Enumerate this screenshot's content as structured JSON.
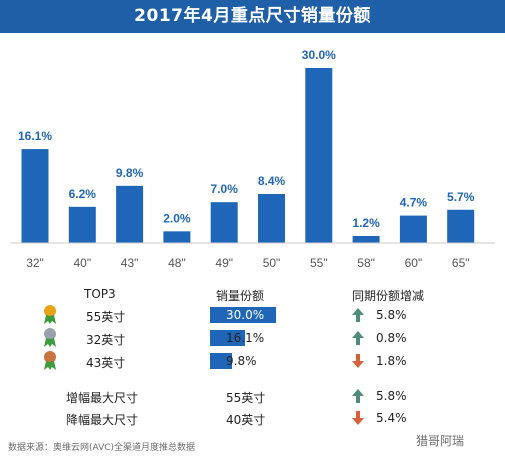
{
  "title": "2017年4月重点尺寸销量份额",
  "chart_data": {
    "type": "bar",
    "categories": [
      "32\"",
      "40\"",
      "43\"",
      "48\"",
      "49\"",
      "50\"",
      "55\"",
      "58\"",
      "60\"",
      "65\""
    ],
    "values": [
      16.1,
      6.2,
      9.8,
      2.0,
      7.0,
      8.4,
      30.0,
      1.2,
      4.7,
      5.7
    ],
    "value_labels": [
      "16.1%",
      "6.2%",
      "9.8%",
      "2.0%",
      "7.0%",
      "8.4%",
      "30.0%",
      "1.2%",
      "4.7%",
      "5.7%"
    ],
    "ylim": [
      0,
      30
    ],
    "grid": false,
    "bar_color": "#1f66b8"
  },
  "table": {
    "headers": {
      "rank": "TOP3",
      "share": "销量份额",
      "yoy": "同期份额增减"
    },
    "rows": [
      {
        "medal": "gold-medal-icon",
        "size": "55英寸",
        "share_label": "30.0%",
        "share": 30.0,
        "yoy": "5.8%",
        "direction": "up"
      },
      {
        "medal": "silver-medal-icon",
        "size": "32英寸",
        "share_label": "16.1%",
        "share": 16.1,
        "yoy": "0.8%",
        "direction": "up"
      },
      {
        "medal": "bronze-medal-icon",
        "size": "43英寸",
        "share_label": "9.8%",
        "share": 9.8,
        "yoy": "1.8%",
        "direction": "down"
      }
    ],
    "extremes": [
      {
        "label": "增幅最大尺寸",
        "size": "55英寸",
        "yoy": "5.8%",
        "direction": "up"
      },
      {
        "label": "降幅最大尺寸",
        "size": "40英寸",
        "yoy": "5.4%",
        "direction": "down"
      }
    ]
  },
  "colors": {
    "title_bg": "#1f5fa8",
    "bar": "#1f66b8",
    "arrow_up": "#4f8a7a",
    "arrow_down": "#d8603a"
  },
  "footer": "数据来源：奥维云网(AVC)全渠道月度推总数据",
  "watermark": "猎哥阿瑞"
}
